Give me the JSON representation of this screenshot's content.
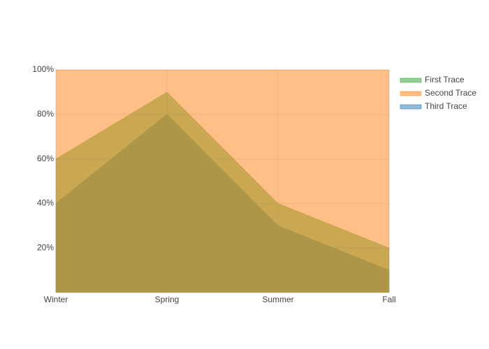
{
  "chart_data": {
    "type": "area",
    "stacked": true,
    "categories": [
      "Winter",
      "Spring",
      "Summer",
      "Fall"
    ],
    "series": [
      {
        "name": "Third Trace",
        "color": "#1f77b4",
        "values": [
          40,
          80,
          30,
          10
        ]
      },
      {
        "name": "First Trace",
        "color": "#2ca02c",
        "values": [
          20,
          10,
          10,
          10
        ]
      },
      {
        "name": "Second Trace",
        "color": "#ff7f0e",
        "values": [
          40,
          10,
          60,
          80
        ]
      }
    ],
    "ylim": [
      0,
      100
    ],
    "yticks": [
      {
        "value": 20,
        "label": "20%"
      },
      {
        "value": 40,
        "label": "40%"
      },
      {
        "value": 60,
        "label": "60%"
      },
      {
        "value": 80,
        "label": "80%"
      },
      {
        "value": 100,
        "label": "100%"
      }
    ],
    "grid": true,
    "legend": "top-right"
  }
}
